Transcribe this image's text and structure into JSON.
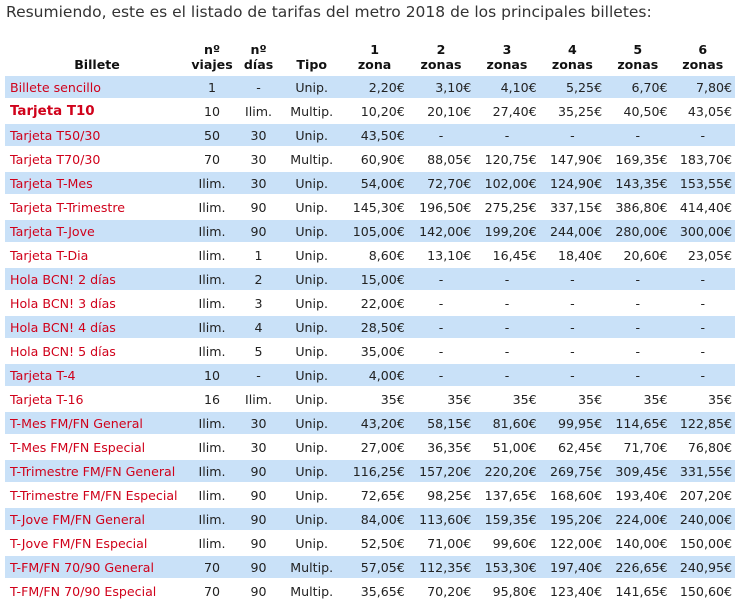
{
  "intro": "Resumiendo, este es el listado de tarifas del metro 2018 de los principales billetes:",
  "headers": {
    "billete": "Billete",
    "viajes": [
      "nº",
      "viajes"
    ],
    "dias": [
      "nº",
      "días"
    ],
    "tipo": "Tipo",
    "z1": [
      "1",
      "zona"
    ],
    "z2": [
      "2",
      "zonas"
    ],
    "z3": [
      "3",
      "zonas"
    ],
    "z4": [
      "4",
      "zonas"
    ],
    "z5": [
      "5",
      "zonas"
    ],
    "z6": [
      "6",
      "zonas"
    ]
  },
  "rows": [
    {
      "name": "Billete sencillo",
      "viajes": "1",
      "dias": "-",
      "tipo": "Unip.",
      "z": [
        "2,20€",
        "3,10€",
        "4,10€",
        "5,25€",
        "6,70€",
        "7,80€"
      ]
    },
    {
      "name": "Tarjeta T10",
      "viajes": "10",
      "dias": "Ilim.",
      "tipo": "Multip.",
      "z": [
        "10,20€",
        "20,10€",
        "27,40€",
        "35,25€",
        "40,50€",
        "43,05€"
      ]
    },
    {
      "name": "Tarjeta T50/30",
      "viajes": "50",
      "dias": "30",
      "tipo": "Unip.",
      "z": [
        "43,50€",
        "-",
        "-",
        "-",
        "-",
        "-"
      ]
    },
    {
      "name": "Tarjeta T70/30",
      "viajes": "70",
      "dias": "30",
      "tipo": "Multip.",
      "z": [
        "60,90€",
        "88,05€",
        "120,75€",
        "147,90€",
        "169,35€",
        "183,70€"
      ]
    },
    {
      "name": "Tarjeta T-Mes",
      "viajes": "Ilim.",
      "dias": "30",
      "tipo": "Unip.",
      "z": [
        "54,00€",
        "72,70€",
        "102,00€",
        "124,90€",
        "143,35€",
        "153,55€"
      ]
    },
    {
      "name": "Tarjeta T-Trimestre",
      "viajes": "Ilim.",
      "dias": "90",
      "tipo": "Unip.",
      "z": [
        "145,30€",
        "196,50€",
        "275,25€",
        "337,15€",
        "386,80€",
        "414,40€"
      ]
    },
    {
      "name": "Tarjeta T-Jove",
      "viajes": "Ilim.",
      "dias": "90",
      "tipo": "Unip.",
      "z": [
        "105,00€",
        "142,00€",
        "199,20€",
        "244,00€",
        "280,00€",
        "300,00€"
      ]
    },
    {
      "name": "Tarjeta T-Dia",
      "viajes": "Ilim.",
      "dias": "1",
      "tipo": "Unip.",
      "z": [
        "8,60€",
        "13,10€",
        "16,45€",
        "18,40€",
        "20,60€",
        "23,05€"
      ]
    },
    {
      "name": "Hola BCN! 2 días",
      "viajes": "Ilim.",
      "dias": "2",
      "tipo": "Unip.",
      "z": [
        "15,00€",
        "-",
        "-",
        "-",
        "-",
        "-"
      ]
    },
    {
      "name": "Hola BCN! 3 días",
      "viajes": "Ilim.",
      "dias": "3",
      "tipo": "Unip.",
      "z": [
        "22,00€",
        "-",
        "-",
        "-",
        "-",
        "-"
      ]
    },
    {
      "name": "Hola BCN! 4 días",
      "viajes": "Ilim.",
      "dias": "4",
      "tipo": "Unip.",
      "z": [
        "28,50€",
        "-",
        "-",
        "-",
        "-",
        "-"
      ]
    },
    {
      "name": "Hola BCN! 5 días",
      "viajes": "Ilim.",
      "dias": "5",
      "tipo": "Unip.",
      "z": [
        "35,00€",
        "-",
        "-",
        "-",
        "-",
        "-"
      ]
    },
    {
      "name": "Tarjeta T-4",
      "viajes": "10",
      "dias": "-",
      "tipo": "Unip.",
      "z": [
        "4,00€",
        "-",
        "-",
        "-",
        "-",
        "-"
      ]
    },
    {
      "name": "Tarjeta T-16",
      "viajes": "16",
      "dias": "Ilim.",
      "tipo": "Unip.",
      "z": [
        "35€",
        "35€",
        "35€",
        "35€",
        "35€",
        "35€"
      ]
    },
    {
      "name": "T-Mes FM/FN General",
      "viajes": "Ilim.",
      "dias": "30",
      "tipo": "Unip.",
      "z": [
        "43,20€",
        "58,15€",
        "81,60€",
        "99,95€",
        "114,65€",
        "122,85€"
      ]
    },
    {
      "name": "T-Mes FM/FN Especial",
      "viajes": "Ilim.",
      "dias": "30",
      "tipo": "Unip.",
      "z": [
        "27,00€",
        "36,35€",
        "51,00€",
        "62,45€",
        "71,70€",
        "76,80€"
      ]
    },
    {
      "name": "T-Trimestre FM/FN General",
      "viajes": "Ilim.",
      "dias": "90",
      "tipo": "Unip.",
      "z": [
        "116,25€",
        "157,20€",
        "220,20€",
        "269,75€",
        "309,45€",
        "331,55€"
      ]
    },
    {
      "name": "T-Trimestre FM/FN Especial",
      "viajes": "Ilim.",
      "dias": "90",
      "tipo": "Unip.",
      "z": [
        "72,65€",
        "98,25€",
        "137,65€",
        "168,60€",
        "193,40€",
        "207,20€"
      ]
    },
    {
      "name": "T-Jove FM/FN General",
      "viajes": "Ilim.",
      "dias": "90",
      "tipo": "Unip.",
      "z": [
        "84,00€",
        "113,60€",
        "159,35€",
        "195,20€",
        "224,00€",
        "240,00€"
      ]
    },
    {
      "name": "T-Jove FM/FN Especial",
      "viajes": "Ilim.",
      "dias": "90",
      "tipo": "Unip.",
      "z": [
        "52,50€",
        "71,00€",
        "99,60€",
        "122,00€",
        "140,00€",
        "150,00€"
      ]
    },
    {
      "name": "T-FM/FN 70/90 General",
      "viajes": "70",
      "dias": "90",
      "tipo": "Multip.",
      "z": [
        "57,05€",
        "112,35€",
        "153,30€",
        "197,40€",
        "226,65€",
        "240,95€"
      ]
    },
    {
      "name": "T-FM/FN 70/90 Especial",
      "viajes": "70",
      "dias": "90",
      "tipo": "Multip.",
      "z": [
        "35,65€",
        "70,20€",
        "95,80€",
        "123,40€",
        "141,65€",
        "150,60€"
      ]
    }
  ]
}
